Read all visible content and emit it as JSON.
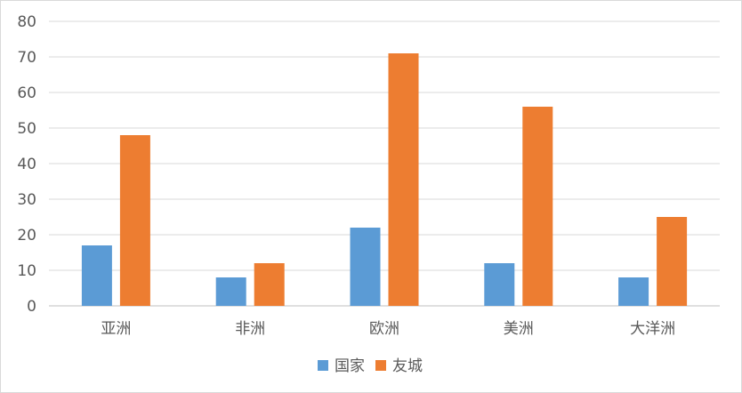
{
  "chart_data": {
    "type": "bar",
    "categories": [
      "亚洲",
      "非洲",
      "欧洲",
      "美洲",
      "大洋洲"
    ],
    "series": [
      {
        "name": "国家",
        "values": [
          17,
          8,
          22,
          12,
          8
        ],
        "color": "#5B9BD5"
      },
      {
        "name": "友城",
        "values": [
          48,
          12,
          71,
          56,
          25
        ],
        "color": "#ED7D31"
      }
    ],
    "yticks": [
      "0",
      "10",
      "20",
      "30",
      "40",
      "50",
      "60",
      "70",
      "80"
    ],
    "ylim": [
      0,
      80
    ],
    "grid": true,
    "gridline_color": "#d9d9d9",
    "legend_position": "bottom"
  }
}
